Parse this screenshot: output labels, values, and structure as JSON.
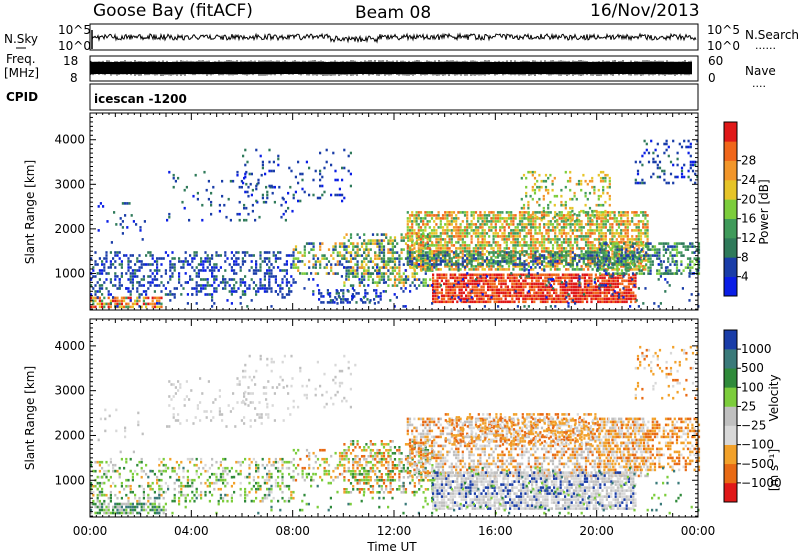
{
  "header": {
    "station": "Goose Bay (fitACF)",
    "beam": "Beam 08",
    "date": "16/Nov/2013"
  },
  "strips": {
    "nsky_label": "N.Sky",
    "nsearch_label": "N.Search",
    "nsky_ticks": [
      "10^5",
      "10^0"
    ],
    "nsearch_ticks": [
      "10^5",
      "10^0"
    ],
    "freq_label_1": "Freq.",
    "freq_label_2": "[MHz]",
    "freq_ticks": [
      "18",
      "8"
    ],
    "nave_label": "Nave",
    "nave_ticks": [
      "60",
      "0"
    ],
    "cpid_label": "CPID",
    "cpid_value": "icescan -1200"
  },
  "colors": {
    "power": [
      "#0a1ee6",
      "#1a3da8",
      "#2f7a5a",
      "#3f9a5a",
      "#7ccd3c",
      "#e6c428",
      "#f2962a",
      "#f0661a",
      "#e01818"
    ],
    "velocity": [
      "#1a3da8",
      "#3a7a7a",
      "#2f8a3a",
      "#7ccd3c",
      "#c0c0c0",
      "#d8d8d8",
      "#f2a12a",
      "#e86a14",
      "#e01818"
    ]
  },
  "chart_data": [
    {
      "type": "heatmap",
      "ylabel": "Slant Range [km]",
      "xlabel": "Time UT",
      "x_ticks": [
        "00:00",
        "04:00",
        "08:00",
        "12:00",
        "16:00",
        "20:00",
        "00:00"
      ],
      "xlim_hours": [
        0,
        24
      ],
      "y_ticks": [
        1000,
        2000,
        3000,
        4000
      ],
      "ylim": [
        180,
        4600
      ],
      "colorbar": {
        "label": "Power [dB]",
        "ticks": [
          "4",
          "8",
          "12",
          "16",
          "20",
          "24",
          "28"
        ]
      }
    },
    {
      "type": "heatmap",
      "ylabel": "Slant Range [km]",
      "xlabel": "Time UT",
      "x_ticks": [
        "00:00",
        "04:00",
        "08:00",
        "12:00",
        "16:00",
        "20:00",
        "00:00"
      ],
      "xlim_hours": [
        0,
        24
      ],
      "y_ticks": [
        1000,
        2000,
        3000,
        4000
      ],
      "ylim": [
        180,
        4600
      ],
      "colorbar": {
        "label": "Velocity",
        "unit": "[m s⁻¹]",
        "ticks": [
          "1000",
          "500",
          "100",
          "25",
          "−25",
          "−100",
          "−500",
          "−1000"
        ]
      }
    }
  ]
}
